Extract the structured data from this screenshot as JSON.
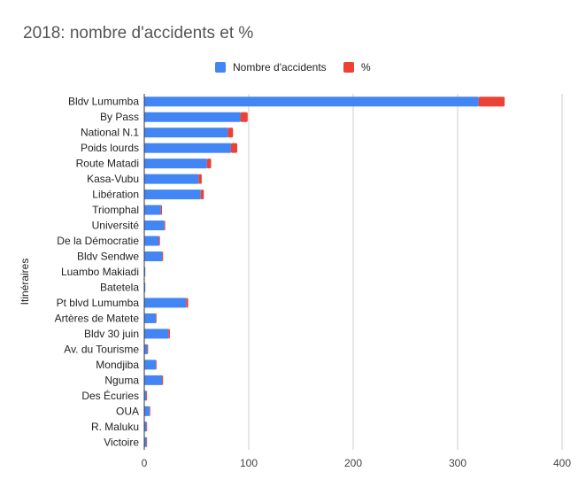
{
  "chart_data": {
    "type": "bar",
    "orientation": "horizontal",
    "stacked": true,
    "title": "2018: nombre d'accidents et %",
    "ylabel": "Itinéraires",
    "xlabel": "",
    "xlim": [
      0,
      400
    ],
    "xticks": [
      "0",
      "100",
      "200",
      "300",
      "400"
    ],
    "grid": true,
    "legend_position": "top",
    "categories": [
      "Bldv Lumumba",
      "By Pass",
      "National N.1",
      "Poids lourds",
      "Route Matadi",
      "Kasa-Vubu",
      "Libération",
      "Triomphal",
      "Université",
      "De la Démocratie",
      "Bldv Sendwe",
      "Luambo Makiadi",
      "Batetela",
      "Pt blvd Lumumba",
      "Artères de Matete",
      "Bldv 30 juin",
      "Av. du Tourisme",
      "Mondjiba",
      "Nguma",
      "Des Écuries",
      "OUA",
      "R. Maluku",
      "Victoire"
    ],
    "series": [
      {
        "name": "Nombre d'accidents",
        "color": "#4285f4",
        "values": [
          320,
          92,
          80,
          83,
          60,
          52,
          54,
          16,
          19,
          14,
          17,
          1,
          1,
          40,
          11,
          23,
          3,
          11,
          17,
          2,
          5,
          2,
          2
        ]
      },
      {
        "name": "%",
        "color": "#ea4335",
        "values": [
          25,
          7,
          5,
          6,
          4,
          3,
          3,
          1,
          1,
          1,
          1,
          0,
          0,
          2,
          0.5,
          1.5,
          0.2,
          0.5,
          1,
          0.1,
          0.2,
          0.1,
          0.1
        ]
      }
    ]
  }
}
